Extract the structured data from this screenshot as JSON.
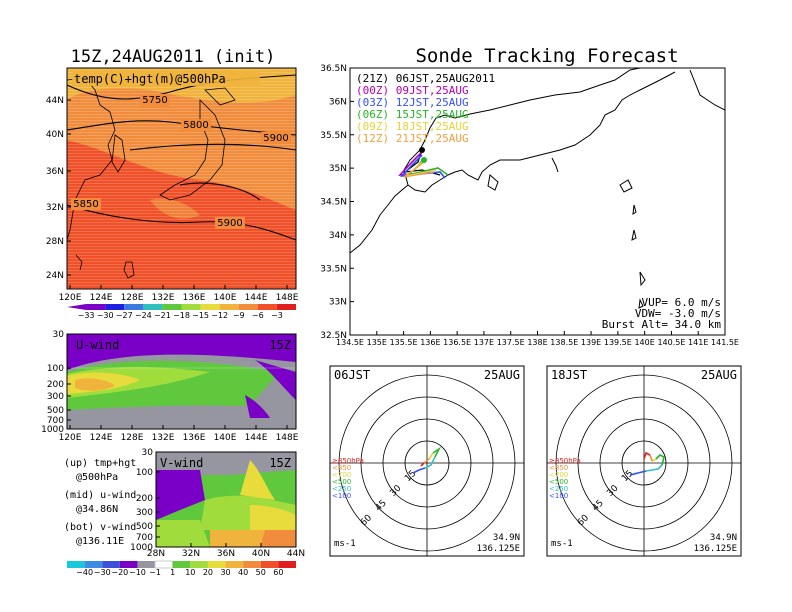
{
  "init_title": "15Z,24AUG2011 (init)",
  "main_title": "Sonde Tracking Forecast",
  "temp_map": {
    "label": "temp(C)+hgt(m)@500hPa",
    "lat_ticks": [
      "44N",
      "40N",
      "36N",
      "32N",
      "28N",
      "24N"
    ],
    "lon_ticks": [
      "120E",
      "124E",
      "128E",
      "132E",
      "136E",
      "140E",
      "144E",
      "148E"
    ],
    "contour_labels": [
      "5750",
      "5800",
      "5900",
      "5850",
      "5900"
    ],
    "colorbar_ticks": [
      "−33",
      "−30",
      "−27",
      "−24",
      "−21",
      "−18",
      "−15",
      "−12",
      "−9",
      "−6",
      "−3"
    ],
    "colorbar_colors": [
      "#7a00c8",
      "#2020e0",
      "#3a7ae0",
      "#30c0c0",
      "#5fc83c",
      "#a0dc3c",
      "#e8dc3c",
      "#f0b43c",
      "#f08c3c",
      "#f05028",
      "#e02020"
    ]
  },
  "uwind": {
    "label": "U-wind",
    "time": "15Z",
    "p_ticks": [
      "30",
      "100",
      "200",
      "300",
      "500",
      "700",
      "1000"
    ],
    "lon_ticks": [
      "120E",
      "124E",
      "128E",
      "132E",
      "136E",
      "140E",
      "144E",
      "148E"
    ]
  },
  "vwind": {
    "label": "V-wind",
    "time": "15Z",
    "p_ticks": [
      "30",
      "100",
      "200",
      "300",
      "500",
      "700",
      "1000"
    ],
    "lat_ticks": [
      "28N",
      "32N",
      "36N",
      "40N",
      "44N"
    ]
  },
  "wind_colorbar": {
    "ticks": [
      "−40",
      "−30",
      "−20",
      "−10",
      "−1",
      "1",
      "10",
      "20",
      "30",
      "40",
      "50",
      "60"
    ],
    "colors": [
      "#1ac8dc",
      "#3c8ce6",
      "#3c50dc",
      "#7a00c8",
      "#9696a0",
      "#ffffff",
      "#5fc83c",
      "#a0dc3c",
      "#e8dc3c",
      "#f0b43c",
      "#f08c3c",
      "#f05028",
      "#e01e1e"
    ]
  },
  "notes": [
    "(up) tmp+hgt",
    "@500hPa",
    "(mid) u-wind",
    "@34.86N",
    "(bot) v-wind",
    "@136.11E"
  ],
  "track_map": {
    "lat_ticks": [
      "36.5N",
      "36N",
      "35.5N",
      "35N",
      "34.5N",
      "34N",
      "33.5N",
      "33N",
      "32.5N"
    ],
    "lon_ticks": [
      "134.5E",
      "135E",
      "135.5E",
      "136E",
      "136.5E",
      "137E",
      "137.5E",
      "138E",
      "138.5E",
      "139E",
      "139.5E",
      "140E",
      "140.5E",
      "141E",
      "141.5E"
    ],
    "legend": [
      {
        "text": "(21Z)  06JST,25AUG2011",
        "color": "#000000"
      },
      {
        "text": "(00Z)  09JST,25AUG",
        "color": "#b400b4"
      },
      {
        "text": "(03Z)  12JST,25AUG",
        "color": "#3250ff"
      },
      {
        "text": "(06Z)  15JST,25AUG",
        "color": "#28b428"
      },
      {
        "text": "(09Z)  18JST,25AUG",
        "color": "#e6d23c"
      },
      {
        "text": "(12Z)  21JST,25AUG",
        "color": "#f0a03c"
      }
    ],
    "params": [
      "VUP=  6.0  m/s",
      "VDW= -3.0  m/s",
      "Burst Alt=  34.0  km"
    ]
  },
  "hodo": [
    {
      "time": "06JST",
      "date": "25AUG",
      "lat": "34.9N",
      "lon": "136.125E",
      "unit": "ms-1",
      "ring_labels": [
        "15",
        "30",
        "45",
        "60"
      ]
    },
    {
      "time": "18JST",
      "date": "25AUG",
      "lat": "34.9N",
      "lon": "136.125E",
      "unit": "ms-1",
      "ring_labels": [
        "15",
        "30",
        "45",
        "60"
      ]
    }
  ],
  "hodo_legend": [
    {
      "text": "≥850hPa",
      "color": "#e02020"
    },
    {
      "text": "<850",
      "color": "#f08c3c"
    },
    {
      "text": "<700",
      "color": "#e6d23c"
    },
    {
      "text": "<500",
      "color": "#28b428"
    },
    {
      "text": "<250",
      "color": "#30c0c0"
    },
    {
      "text": "<100",
      "color": "#3250ff"
    }
  ]
}
